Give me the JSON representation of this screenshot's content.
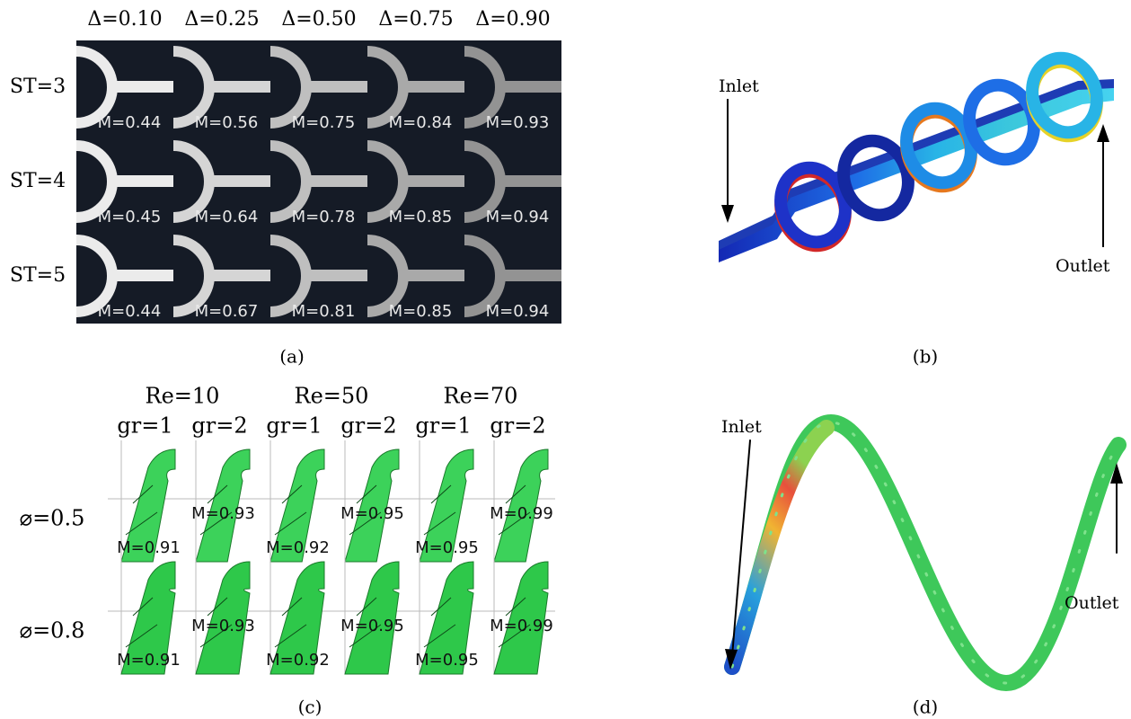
{
  "panel_a": {
    "columns": [
      "Δ=0.10",
      "Δ=0.25",
      "Δ=0.50",
      "Δ=0.75",
      "Δ=0.90"
    ],
    "rows": [
      {
        "label": "ST=3",
        "m": [
          "M=0.44",
          "M=0.56",
          "M=0.75",
          "M=0.84",
          "M=0.93"
        ]
      },
      {
        "label": "ST=4",
        "m": [
          "M=0.45",
          "M=0.64",
          "M=0.78",
          "M=0.85",
          "M=0.94"
        ]
      },
      {
        "label": "ST=5",
        "m": [
          "M=0.44",
          "M=0.67",
          "M=0.81",
          "M=0.85",
          "M=0.94"
        ]
      }
    ],
    "caption": "(a)"
  },
  "panel_b": {
    "inlet": "Inlet",
    "outlet": "Outlet",
    "caption": "(b)"
  },
  "panel_c": {
    "re": [
      "Re=10",
      "Re=50",
      "Re=70"
    ],
    "gr": [
      "gr=1",
      "gr=2",
      "gr=1",
      "gr=2",
      "gr=1",
      "gr=2"
    ],
    "rows": [
      {
        "label": "⌀=0.5",
        "m": [
          "M=0.91",
          "M=0.93",
          "M=0.92",
          "M=0.95",
          "M=0.95",
          "M=0.99"
        ]
      },
      {
        "label": "⌀=0.8",
        "m": [
          "M=0.91",
          "M=0.93",
          "M=0.92",
          "M=0.95",
          "M=0.95",
          "M=0.99"
        ]
      }
    ],
    "caption": "(c)"
  },
  "panel_d": {
    "inlet": "Inlet",
    "outlet": "Outlet",
    "caption": "(d)"
  }
}
